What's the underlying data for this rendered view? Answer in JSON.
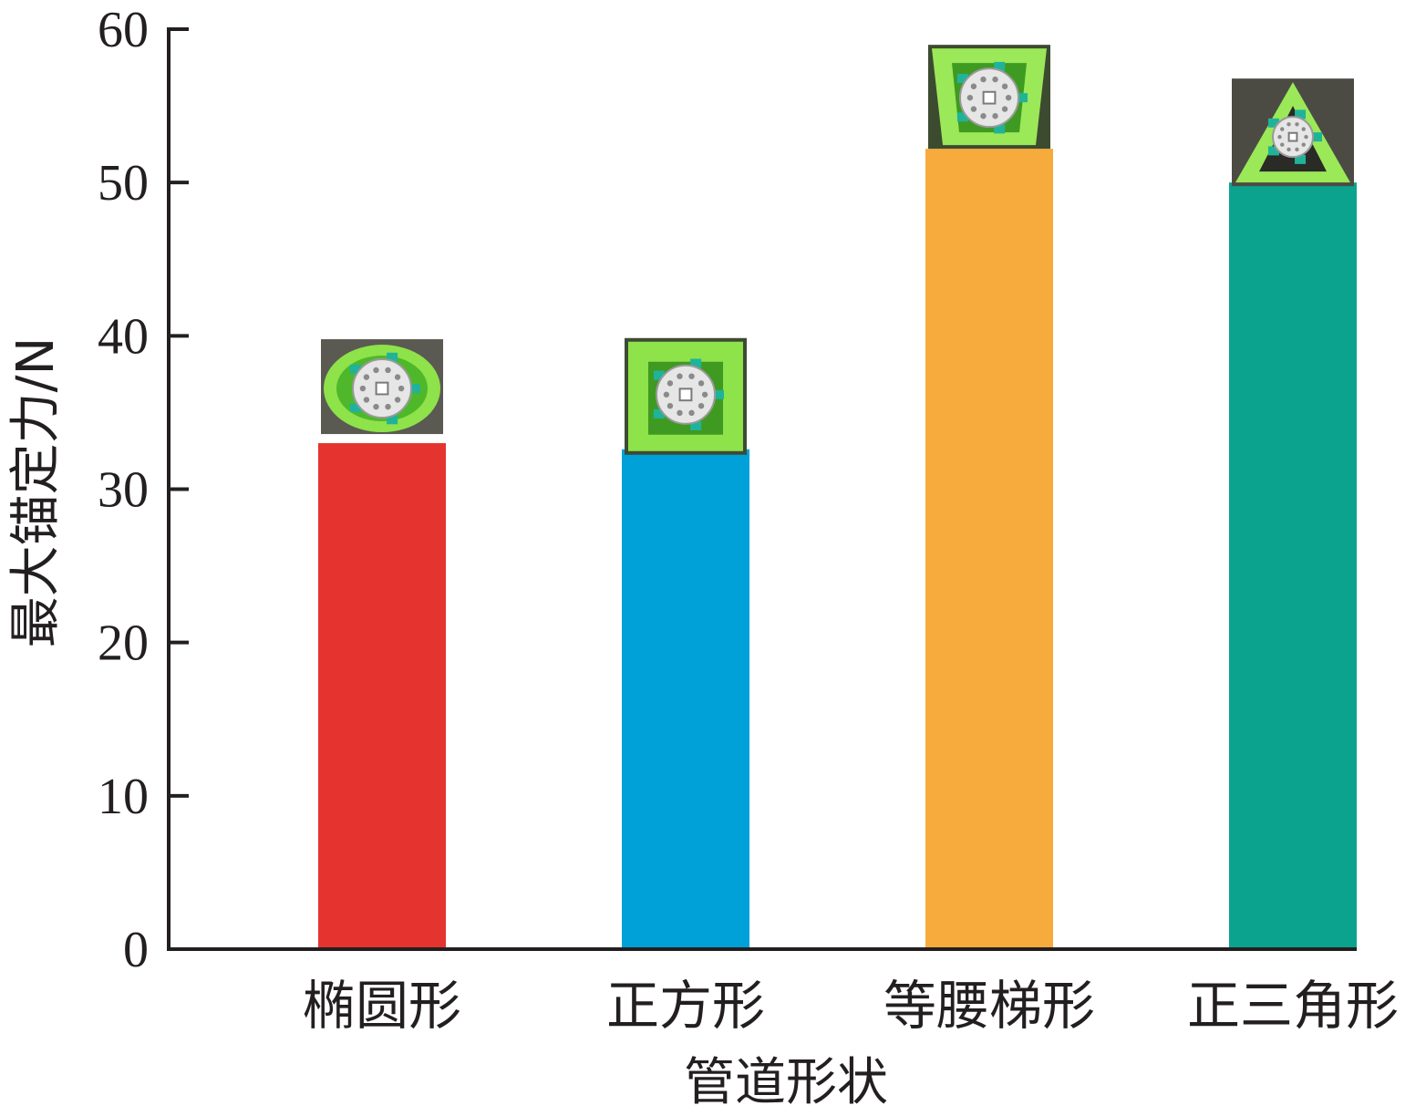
{
  "chart_data": {
    "type": "bar",
    "title": "",
    "xlabel": "管道形状",
    "ylabel": "最大锚定力/N",
    "categories": [
      "椭圆形",
      "正方形",
      "等腰梯形",
      "正三角形"
    ],
    "values": [
      33.0,
      32.6,
      52.2,
      50.0
    ],
    "colors": [
      "#e5332f",
      "#00a0d8",
      "#f6ab3c",
      "#0ba38e"
    ],
    "insets": [
      "ellipse-duct-photo",
      "square-duct-photo",
      "trapezoid-duct-photo",
      "triangle-duct-photo"
    ],
    "ylim": [
      0,
      60
    ],
    "yticks": [
      0,
      10,
      20,
      30,
      40,
      50,
      60
    ],
    "grid": false,
    "legend": "none"
  }
}
